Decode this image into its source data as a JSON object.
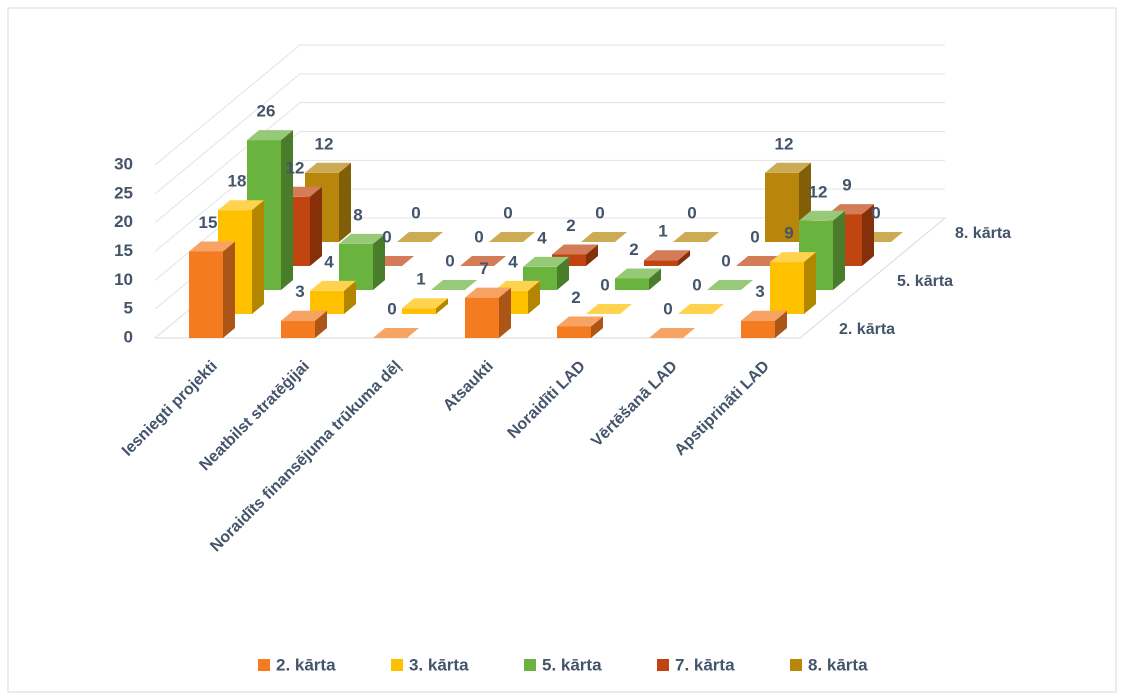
{
  "chart_data": {
    "type": "bar3d",
    "categories": [
      "Iesniegti projekti",
      "Neatbilst stratēģijai",
      "Noraidīts finansējuma trūkuma dēļ",
      "Atsaukti",
      "Noraidīti LAD",
      "Vērtēšanā LAD",
      "Apstiprināti LAD"
    ],
    "series": [
      {
        "name": "2. kārta",
        "color": "#f47b20",
        "values": [
          15,
          3,
          0,
          7,
          2,
          0,
          3
        ]
      },
      {
        "name": "3. kārta",
        "color": "#ffc000",
        "values": [
          18,
          4,
          1,
          4,
          0,
          0,
          9
        ]
      },
      {
        "name": "5. kārta",
        "color": "#6ab33e",
        "values": [
          26,
          8,
          0,
          4,
          2,
          0,
          12
        ]
      },
      {
        "name": "7. kārta",
        "color": "#c0440f",
        "values": [
          12,
          0,
          0,
          2,
          1,
          0,
          9
        ]
      },
      {
        "name": "8. kārta",
        "color": "#b8860b",
        "values": [
          12,
          0,
          0,
          0,
          0,
          12,
          0
        ]
      }
    ],
    "ylim": [
      0,
      30
    ],
    "yticks": [
      0,
      5,
      10,
      15,
      20,
      25,
      30
    ],
    "grid": true,
    "legend": "bottom"
  }
}
